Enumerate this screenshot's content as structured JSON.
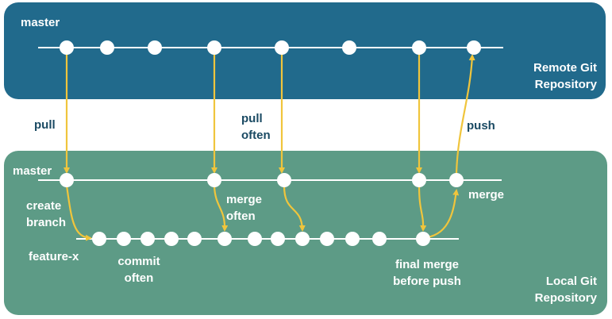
{
  "remote": {
    "branch_label": "master",
    "title": "Remote Git\nRepository"
  },
  "local": {
    "branch_label": "master",
    "title": "Local Git\nRepository",
    "feature_label": "feature-x"
  },
  "annotations": {
    "pull": "pull",
    "pull_often": "pull\noften",
    "push": "push",
    "create_branch": "create\nbranch",
    "merge_often": "merge\noften",
    "commit_often": "commit\noften",
    "merge": "merge",
    "final_merge": "final merge\nbefore push"
  },
  "colors": {
    "remote_bg": "#216a8c",
    "local_bg": "#5d9b86",
    "arrow": "#f0c53c",
    "line": "#ffffff",
    "commit": "#ffffff"
  }
}
